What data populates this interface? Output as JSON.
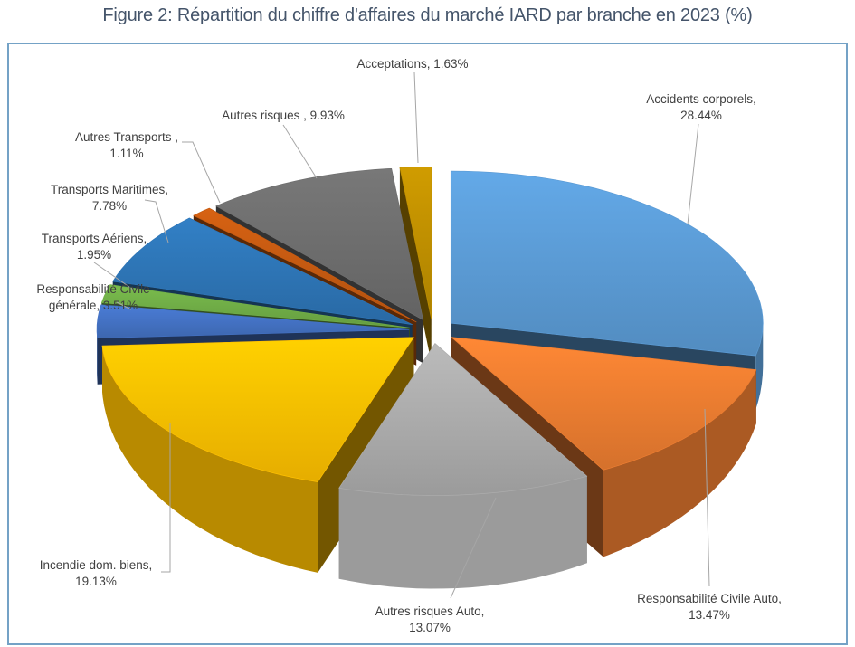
{
  "title": "Figure 2: Répartition du chiffre d'affaires du marché IARD par branche en 2023 (%)",
  "chart_data": {
    "type": "pie",
    "style": "3d-exploded",
    "unit": "%",
    "start_angle_deg": 0,
    "direction": "clockwise",
    "legend": "none",
    "labels_format": "{name}, {value}%",
    "slices": [
      {
        "name": "Accidents corporels",
        "value": 28.44,
        "color": "#5B9BD5"
      },
      {
        "name": "Responsabilité Civile Auto",
        "value": 13.47,
        "color": "#ED7D31"
      },
      {
        "name": "Autres risques Auto",
        "value": 13.07,
        "color": "#ACACAC"
      },
      {
        "name": "Incendie dom. biens",
        "value": 19.13,
        "color": "#FFC000"
      },
      {
        "name": "Responsabilité Civile générale",
        "value": 3.51,
        "color": "#4472C4"
      },
      {
        "name": "Transports Aériens",
        "value": 1.95,
        "color": "#70AD47"
      },
      {
        "name": "Transports Maritimes",
        "value": 7.78,
        "color": "#2E75B6"
      },
      {
        "name": "Autres Transports ",
        "value": 1.11,
        "color": "#C55A11"
      },
      {
        "name": "Autres risques ",
        "value": 9.93,
        "color": "#6E6E6E"
      },
      {
        "name": "Acceptations",
        "value": 1.63,
        "color": "#BF8F00"
      }
    ]
  }
}
